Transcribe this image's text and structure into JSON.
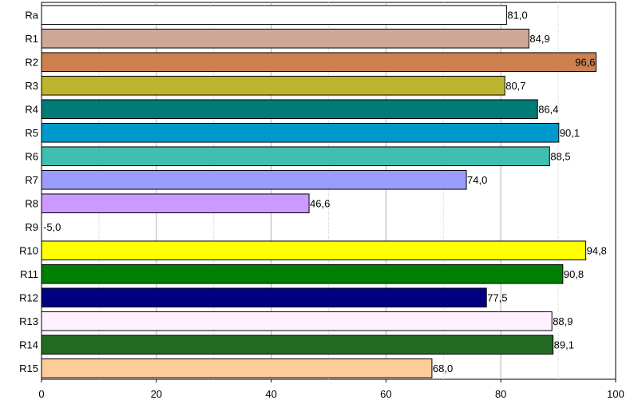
{
  "chart_data": {
    "type": "bar",
    "orientation": "horizontal",
    "categories": [
      "Ra",
      "R1",
      "R2",
      "R3",
      "R4",
      "R5",
      "R6",
      "R7",
      "R8",
      "R9",
      "R10",
      "R11",
      "R12",
      "R13",
      "R14",
      "R15"
    ],
    "values": [
      81.0,
      84.9,
      96.6,
      80.7,
      86.4,
      90.1,
      88.5,
      74.0,
      46.6,
      -5.0,
      94.8,
      90.8,
      77.5,
      88.9,
      89.1,
      68.0
    ],
    "value_labels": [
      "81,0",
      "84,9",
      "96,6",
      "80,7",
      "86,4",
      "90,1",
      "88,5",
      "74,0",
      "46,6",
      "-5,0",
      "94,8",
      "90,8",
      "77,5",
      "88,9",
      "89,1",
      "68,0"
    ],
    "colors": [
      "#ffffff",
      "#cda898",
      "#cd8050",
      "#bdb42f",
      "#007b78",
      "#0099cc",
      "#40bfb0",
      "#9b9bfb",
      "#cc99ff",
      "#ffffff",
      "#ffff00",
      "#007f00",
      "#000080",
      "#fff0ff",
      "#236b23",
      "#ffcc99"
    ],
    "title": "",
    "xlabel": "",
    "ylabel": "",
    "xlim": [
      0,
      100
    ],
    "xticks": [
      0,
      20,
      40,
      60,
      80,
      100
    ],
    "grid": true,
    "legend": "none"
  }
}
